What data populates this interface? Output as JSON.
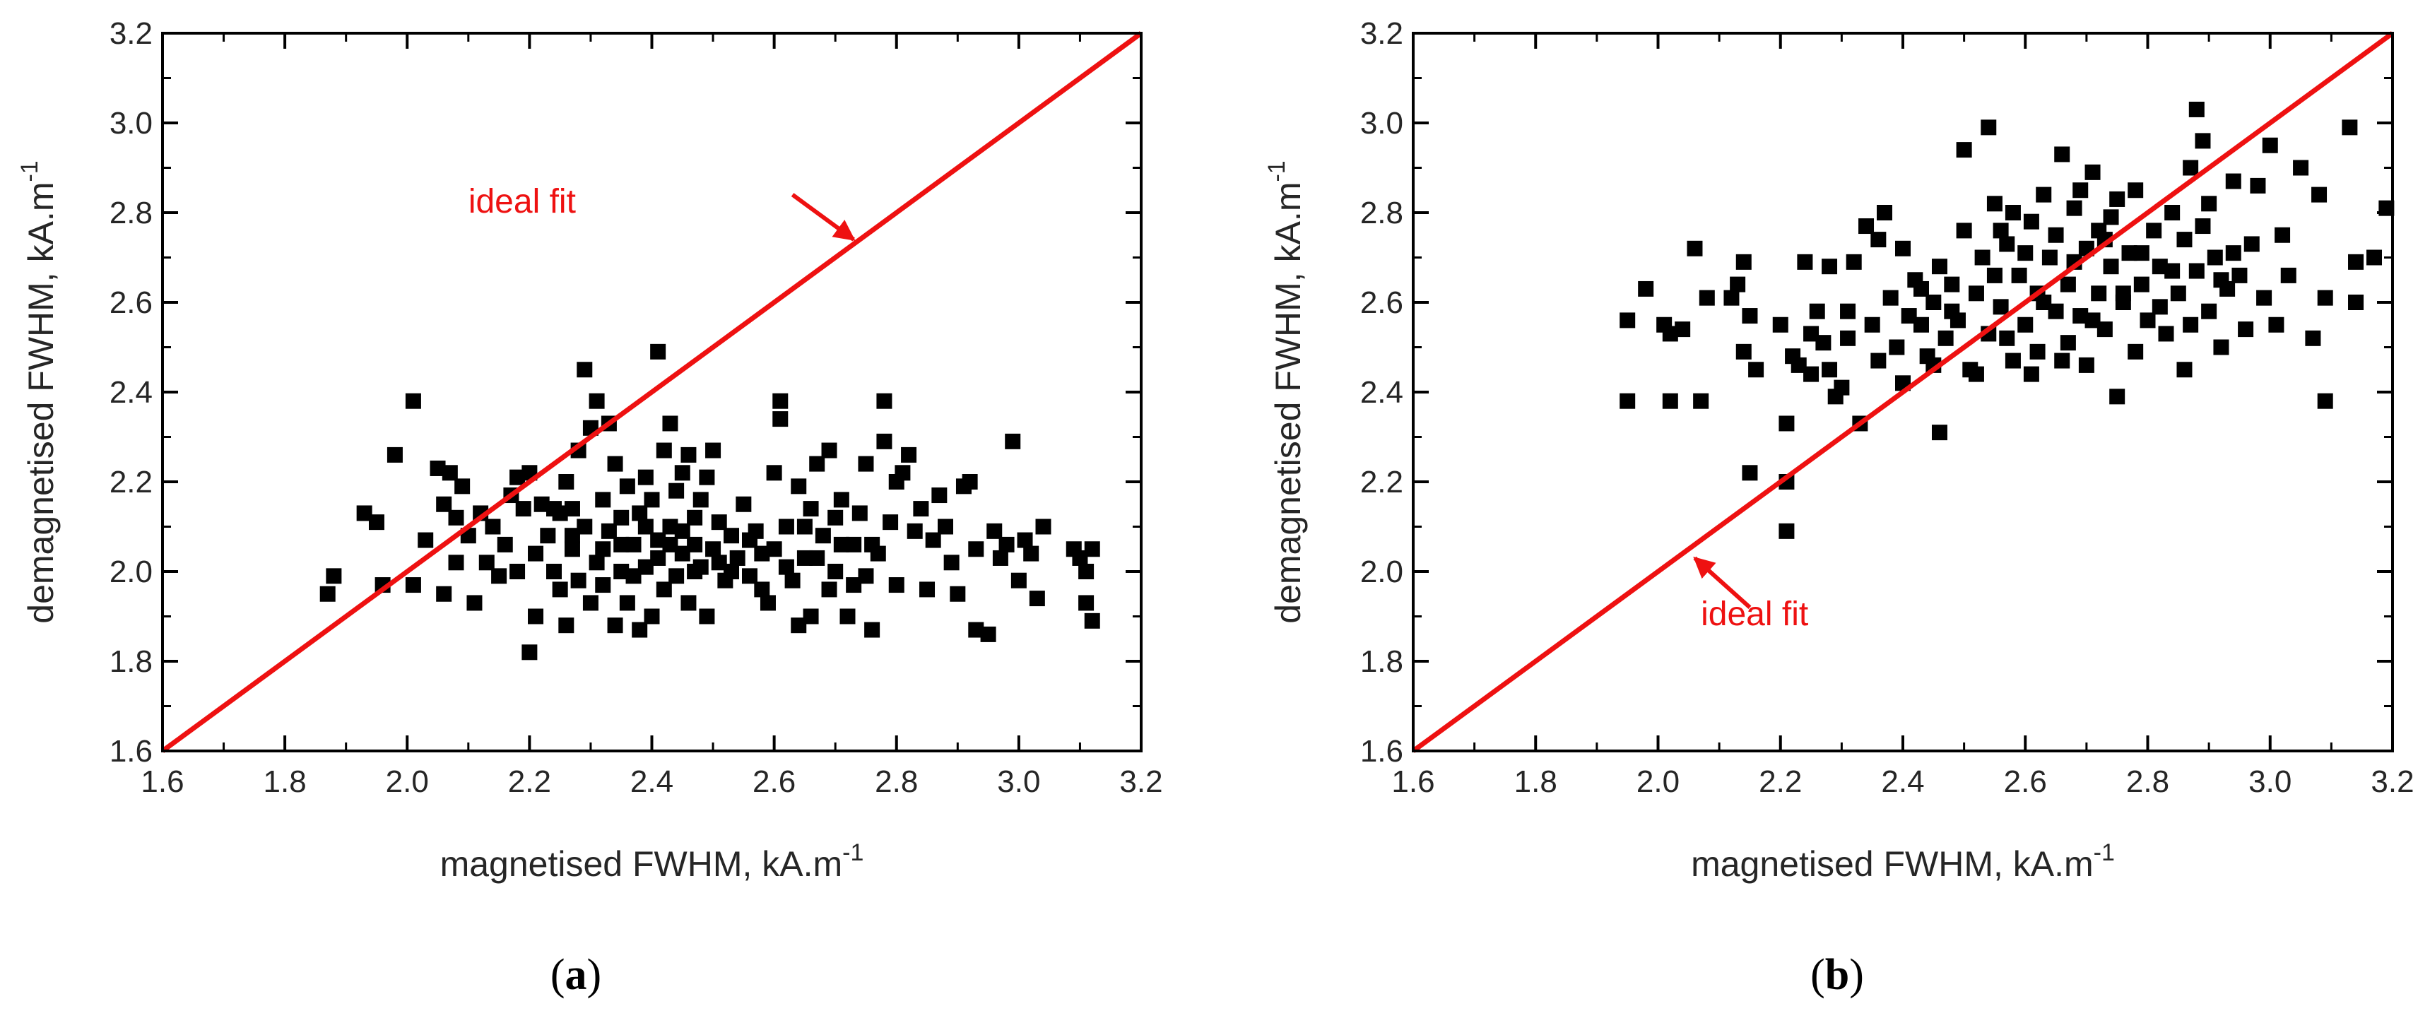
{
  "figure": {
    "panels": [
      {
        "caption": "(a)",
        "caption_letter": "a"
      },
      {
        "caption": "(b)",
        "caption_letter": "b"
      }
    ]
  },
  "colors": {
    "points": "#000000",
    "ideal_line": "#ee1111",
    "annotation": "#ee1111",
    "axes": "#000000"
  },
  "chart_data": [
    {
      "type": "scatter",
      "xlabel": "magnetised FWHM, kA.m",
      "xlabel_superscript": "-1",
      "ylabel": "demagnetised FWHM, kA.m",
      "ylabel_superscript": "-1",
      "xlim": [
        1.6,
        3.2
      ],
      "ylim": [
        1.6,
        3.2
      ],
      "xticks": [
        "1.6",
        "1.8",
        "2.0",
        "2.2",
        "2.4",
        "2.6",
        "2.8",
        "3.0",
        "3.2"
      ],
      "yticks": [
        "1.6",
        "1.8",
        "2.0",
        "2.2",
        "2.4",
        "2.6",
        "2.8",
        "3.0",
        "3.2"
      ],
      "grid": false,
      "ideal_line": {
        "from": [
          1.6,
          1.6
        ],
        "to": [
          3.2,
          3.2
        ]
      },
      "annotation": {
        "text": "ideal fit",
        "text_at": [
          2.1,
          2.8
        ],
        "arrow_tail": [
          2.63,
          2.84
        ],
        "arrow_head": [
          2.73,
          2.74
        ]
      },
      "points": [
        [
          1.87,
          1.95
        ],
        [
          1.88,
          1.99
        ],
        [
          1.93,
          2.13
        ],
        [
          1.95,
          2.11
        ],
        [
          1.96,
          1.97
        ],
        [
          1.98,
          2.26
        ],
        [
          2.01,
          2.38
        ],
        [
          2.01,
          1.97
        ],
        [
          2.03,
          2.07
        ],
        [
          2.05,
          2.23
        ],
        [
          2.06,
          2.15
        ],
        [
          2.06,
          1.95
        ],
        [
          2.07,
          2.22
        ],
        [
          2.08,
          2.12
        ],
        [
          2.08,
          2.02
        ],
        [
          2.09,
          2.19
        ],
        [
          2.1,
          2.08
        ],
        [
          2.11,
          1.93
        ],
        [
          2.12,
          2.13
        ],
        [
          2.13,
          2.02
        ],
        [
          2.14,
          2.1
        ],
        [
          2.15,
          1.99
        ],
        [
          2.16,
          2.06
        ],
        [
          2.17,
          2.17
        ],
        [
          2.18,
          2.21
        ],
        [
          2.18,
          2.0
        ],
        [
          2.19,
          2.14
        ],
        [
          2.2,
          2.22
        ],
        [
          2.2,
          1.82
        ],
        [
          2.21,
          2.04
        ],
        [
          2.21,
          1.9
        ],
        [
          2.22,
          2.15
        ],
        [
          2.23,
          2.08
        ],
        [
          2.24,
          2.0
        ],
        [
          2.24,
          2.14
        ],
        [
          2.25,
          1.96
        ],
        [
          2.26,
          2.2
        ],
        [
          2.26,
          1.88
        ],
        [
          2.27,
          2.05
        ],
        [
          2.27,
          2.14
        ],
        [
          2.28,
          2.27
        ],
        [
          2.28,
          1.98
        ],
        [
          2.29,
          2.45
        ],
        [
          2.29,
          2.1
        ],
        [
          2.3,
          2.32
        ],
        [
          2.3,
          1.93
        ],
        [
          2.31,
          2.38
        ],
        [
          2.31,
          2.02
        ],
        [
          2.32,
          2.16
        ],
        [
          2.32,
          1.97
        ],
        [
          2.33,
          2.33
        ],
        [
          2.33,
          2.09
        ],
        [
          2.34,
          2.24
        ],
        [
          2.34,
          1.88
        ],
        [
          2.35,
          2.12
        ],
        [
          2.35,
          2.0
        ],
        [
          2.36,
          2.19
        ],
        [
          2.36,
          1.93
        ],
        [
          2.37,
          2.06
        ],
        [
          2.38,
          2.13
        ],
        [
          2.38,
          1.87
        ],
        [
          2.39,
          2.21
        ],
        [
          2.39,
          2.01
        ],
        [
          2.4,
          2.16
        ],
        [
          2.4,
          1.9
        ],
        [
          2.41,
          2.49
        ],
        [
          2.41,
          2.07
        ],
        [
          2.42,
          2.27
        ],
        [
          2.42,
          1.96
        ],
        [
          2.43,
          2.33
        ],
        [
          2.43,
          2.1
        ],
        [
          2.44,
          2.18
        ],
        [
          2.44,
          1.99
        ],
        [
          2.45,
          2.22
        ],
        [
          2.45,
          2.04
        ],
        [
          2.46,
          2.26
        ],
        [
          2.46,
          1.93
        ],
        [
          2.47,
          2.12
        ],
        [
          2.47,
          2.0
        ],
        [
          2.48,
          2.16
        ],
        [
          2.49,
          2.21
        ],
        [
          2.49,
          1.9
        ],
        [
          2.5,
          2.27
        ],
        [
          2.5,
          2.05
        ],
        [
          2.51,
          2.11
        ],
        [
          2.52,
          1.98
        ],
        [
          2.53,
          2.08
        ],
        [
          2.54,
          2.03
        ],
        [
          2.55,
          2.15
        ],
        [
          2.56,
          1.99
        ],
        [
          2.57,
          2.09
        ],
        [
          2.58,
          2.04
        ],
        [
          2.59,
          1.93
        ],
        [
          2.6,
          2.22
        ],
        [
          2.6,
          2.05
        ],
        [
          2.61,
          2.34
        ],
        [
          2.61,
          2.38
        ],
        [
          2.62,
          2.1
        ],
        [
          2.63,
          1.98
        ],
        [
          2.64,
          2.19
        ],
        [
          2.64,
          1.88
        ],
        [
          2.65,
          2.03
        ],
        [
          2.66,
          2.14
        ],
        [
          2.66,
          1.9
        ],
        [
          2.67,
          2.24
        ],
        [
          2.68,
          2.08
        ],
        [
          2.69,
          2.27
        ],
        [
          2.69,
          1.96
        ],
        [
          2.7,
          2.12
        ],
        [
          2.7,
          2.0
        ],
        [
          2.71,
          2.16
        ],
        [
          2.72,
          1.9
        ],
        [
          2.73,
          2.06
        ],
        [
          2.74,
          2.13
        ],
        [
          2.75,
          1.99
        ],
        [
          2.75,
          2.24
        ],
        [
          2.76,
          1.87
        ],
        [
          2.77,
          2.04
        ],
        [
          2.78,
          2.38
        ],
        [
          2.78,
          2.29
        ],
        [
          2.79,
          2.11
        ],
        [
          2.8,
          2.2
        ],
        [
          2.8,
          1.97
        ],
        [
          2.81,
          2.22
        ],
        [
          2.82,
          2.26
        ],
        [
          2.83,
          2.09
        ],
        [
          2.84,
          2.14
        ],
        [
          2.85,
          1.96
        ],
        [
          2.86,
          2.07
        ],
        [
          2.87,
          2.17
        ],
        [
          2.88,
          2.1
        ],
        [
          2.89,
          2.02
        ],
        [
          2.9,
          1.95
        ],
        [
          2.91,
          2.19
        ],
        [
          2.92,
          2.2
        ],
        [
          2.93,
          2.05
        ],
        [
          2.93,
          1.87
        ],
        [
          2.95,
          1.86
        ],
        [
          2.96,
          2.09
        ],
        [
          2.97,
          2.03
        ],
        [
          2.98,
          2.06
        ],
        [
          2.99,
          2.29
        ],
        [
          3.0,
          1.98
        ],
        [
          3.01,
          2.07
        ],
        [
          3.02,
          2.04
        ],
        [
          3.03,
          1.94
        ],
        [
          3.04,
          2.1
        ],
        [
          3.09,
          2.05
        ],
        [
          3.1,
          2.03
        ],
        [
          3.11,
          1.93
        ],
        [
          3.11,
          2.0
        ],
        [
          3.12,
          1.89
        ],
        [
          3.12,
          2.05
        ],
        [
          2.25,
          2.13
        ],
        [
          2.27,
          2.08
        ],
        [
          2.32,
          2.05
        ],
        [
          2.35,
          2.06
        ],
        [
          2.37,
          1.99
        ],
        [
          2.39,
          2.1
        ],
        [
          2.41,
          2.03
        ],
        [
          2.43,
          2.06
        ],
        [
          2.45,
          2.09
        ],
        [
          2.47,
          2.06
        ],
        [
          2.48,
          2.01
        ],
        [
          2.51,
          2.02
        ],
        [
          2.53,
          2.0
        ],
        [
          2.56,
          2.07
        ],
        [
          2.58,
          1.96
        ],
        [
          2.62,
          2.01
        ],
        [
          2.65,
          2.1
        ],
        [
          2.67,
          2.03
        ],
        [
          2.71,
          2.06
        ],
        [
          2.73,
          1.97
        ],
        [
          2.76,
          2.06
        ]
      ]
    },
    {
      "type": "scatter",
      "xlabel": "magnetised FWHM, kA.m",
      "xlabel_superscript": "-1",
      "ylabel": "demagnetised FWHM, kA.m",
      "ylabel_superscript": "-1",
      "xlim": [
        1.6,
        3.2
      ],
      "ylim": [
        1.6,
        3.2
      ],
      "xticks": [
        "1.6",
        "1.8",
        "2.0",
        "2.2",
        "2.4",
        "2.6",
        "2.8",
        "3.0",
        "3.2"
      ],
      "yticks": [
        "1.6",
        "1.8",
        "2.0",
        "2.2",
        "2.4",
        "2.6",
        "2.8",
        "3.0",
        "3.2"
      ],
      "grid": false,
      "ideal_line": {
        "from": [
          1.6,
          1.6
        ],
        "to": [
          3.2,
          3.2
        ]
      },
      "annotation": {
        "text": "ideal fit",
        "text_at": [
          2.07,
          1.88
        ],
        "arrow_tail": [
          2.15,
          1.92
        ],
        "arrow_head": [
          2.06,
          2.03
        ]
      },
      "points": [
        [
          1.95,
          2.56
        ],
        [
          1.95,
          2.38
        ],
        [
          1.98,
          2.63
        ],
        [
          2.01,
          2.55
        ],
        [
          2.02,
          2.38
        ],
        [
          2.02,
          2.53
        ],
        [
          2.04,
          2.54
        ],
        [
          2.06,
          2.72
        ],
        [
          2.07,
          2.38
        ],
        [
          2.08,
          2.61
        ],
        [
          2.12,
          2.61
        ],
        [
          2.13,
          2.64
        ],
        [
          2.14,
          2.69
        ],
        [
          2.14,
          2.49
        ],
        [
          2.15,
          2.22
        ],
        [
          2.15,
          2.57
        ],
        [
          2.16,
          2.45
        ],
        [
          2.2,
          2.55
        ],
        [
          2.21,
          2.33
        ],
        [
          2.21,
          2.2
        ],
        [
          2.21,
          2.09
        ],
        [
          2.22,
          2.48
        ],
        [
          2.23,
          2.46
        ],
        [
          2.24,
          2.69
        ],
        [
          2.25,
          2.53
        ],
        [
          2.25,
          2.44
        ],
        [
          2.26,
          2.58
        ],
        [
          2.27,
          2.51
        ],
        [
          2.28,
          2.45
        ],
        [
          2.28,
          2.68
        ],
        [
          2.29,
          2.39
        ],
        [
          2.3,
          2.41
        ],
        [
          2.31,
          2.52
        ],
        [
          2.32,
          2.69
        ],
        [
          2.33,
          2.33
        ],
        [
          2.34,
          2.77
        ],
        [
          2.35,
          2.55
        ],
        [
          2.36,
          2.47
        ],
        [
          2.37,
          2.8
        ],
        [
          2.38,
          2.61
        ],
        [
          2.39,
          2.5
        ],
        [
          2.4,
          2.72
        ],
        [
          2.41,
          2.57
        ],
        [
          2.42,
          2.65
        ],
        [
          2.43,
          2.55
        ],
        [
          2.44,
          2.48
        ],
        [
          2.45,
          2.6
        ],
        [
          2.46,
          2.68
        ],
        [
          2.46,
          2.31
        ],
        [
          2.47,
          2.52
        ],
        [
          2.48,
          2.64
        ],
        [
          2.49,
          2.56
        ],
        [
          2.5,
          2.94
        ],
        [
          2.5,
          2.76
        ],
        [
          2.51,
          2.45
        ],
        [
          2.52,
          2.62
        ],
        [
          2.53,
          2.7
        ],
        [
          2.54,
          2.99
        ],
        [
          2.54,
          2.53
        ],
        [
          2.55,
          2.82
        ],
        [
          2.56,
          2.59
        ],
        [
          2.57,
          2.73
        ],
        [
          2.58,
          2.47
        ],
        [
          2.58,
          2.8
        ],
        [
          2.59,
          2.66
        ],
        [
          2.6,
          2.55
        ],
        [
          2.61,
          2.78
        ],
        [
          2.62,
          2.62
        ],
        [
          2.62,
          2.49
        ],
        [
          2.63,
          2.84
        ],
        [
          2.64,
          2.7
        ],
        [
          2.65,
          2.58
        ],
        [
          2.65,
          2.75
        ],
        [
          2.66,
          2.93
        ],
        [
          2.67,
          2.51
        ],
        [
          2.67,
          2.64
        ],
        [
          2.68,
          2.81
        ],
        [
          2.69,
          2.57
        ],
        [
          2.7,
          2.72
        ],
        [
          2.7,
          2.46
        ],
        [
          2.71,
          2.89
        ],
        [
          2.72,
          2.62
        ],
        [
          2.72,
          2.76
        ],
        [
          2.73,
          2.54
        ],
        [
          2.74,
          2.68
        ],
        [
          2.75,
          2.83
        ],
        [
          2.75,
          2.39
        ],
        [
          2.76,
          2.6
        ],
        [
          2.77,
          2.71
        ],
        [
          2.78,
          2.49
        ],
        [
          2.78,
          2.85
        ],
        [
          2.79,
          2.64
        ],
        [
          2.8,
          2.56
        ],
        [
          2.81,
          2.76
        ],
        [
          2.82,
          2.68
        ],
        [
          2.83,
          2.53
        ],
        [
          2.84,
          2.8
        ],
        [
          2.85,
          2.62
        ],
        [
          2.86,
          2.45
        ],
        [
          2.86,
          2.74
        ],
        [
          2.87,
          2.9
        ],
        [
          2.88,
          2.67
        ],
        [
          2.88,
          3.03
        ],
        [
          2.89,
          2.96
        ],
        [
          2.9,
          2.58
        ],
        [
          2.9,
          2.82
        ],
        [
          2.91,
          2.7
        ],
        [
          2.92,
          2.5
        ],
        [
          2.93,
          2.63
        ],
        [
          2.94,
          2.87
        ],
        [
          2.95,
          2.66
        ],
        [
          2.96,
          2.54
        ],
        [
          2.97,
          2.73
        ],
        [
          2.98,
          2.86
        ],
        [
          2.99,
          2.61
        ],
        [
          3.0,
          2.95
        ],
        [
          3.01,
          2.55
        ],
        [
          3.02,
          2.75
        ],
        [
          3.03,
          2.66
        ],
        [
          3.05,
          2.9
        ],
        [
          3.07,
          2.52
        ],
        [
          3.08,
          2.84
        ],
        [
          3.09,
          2.61
        ],
        [
          3.09,
          2.38
        ],
        [
          3.13,
          2.99
        ],
        [
          3.14,
          2.69
        ],
        [
          3.17,
          2.7
        ],
        [
          3.19,
          2.81
        ],
        [
          3.14,
          2.6
        ],
        [
          2.45,
          2.46
        ],
        [
          2.48,
          2.58
        ],
        [
          2.52,
          2.44
        ],
        [
          2.55,
          2.66
        ],
        [
          2.57,
          2.52
        ],
        [
          2.6,
          2.71
        ],
        [
          2.63,
          2.6
        ],
        [
          2.66,
          2.47
        ],
        [
          2.68,
          2.69
        ],
        [
          2.71,
          2.56
        ],
        [
          2.73,
          2.74
        ],
        [
          2.76,
          2.62
        ],
        [
          2.79,
          2.71
        ],
        [
          2.82,
          2.59
        ],
        [
          2.84,
          2.67
        ],
        [
          2.87,
          2.55
        ],
        [
          2.89,
          2.77
        ],
        [
          2.92,
          2.65
        ],
        [
          2.94,
          2.71
        ],
        [
          2.69,
          2.85
        ],
        [
          2.74,
          2.79
        ],
        [
          2.61,
          2.44
        ],
        [
          2.56,
          2.76
        ],
        [
          2.43,
          2.63
        ],
        [
          2.4,
          2.42
        ],
        [
          2.36,
          2.74
        ],
        [
          2.31,
          2.58
        ]
      ]
    }
  ]
}
